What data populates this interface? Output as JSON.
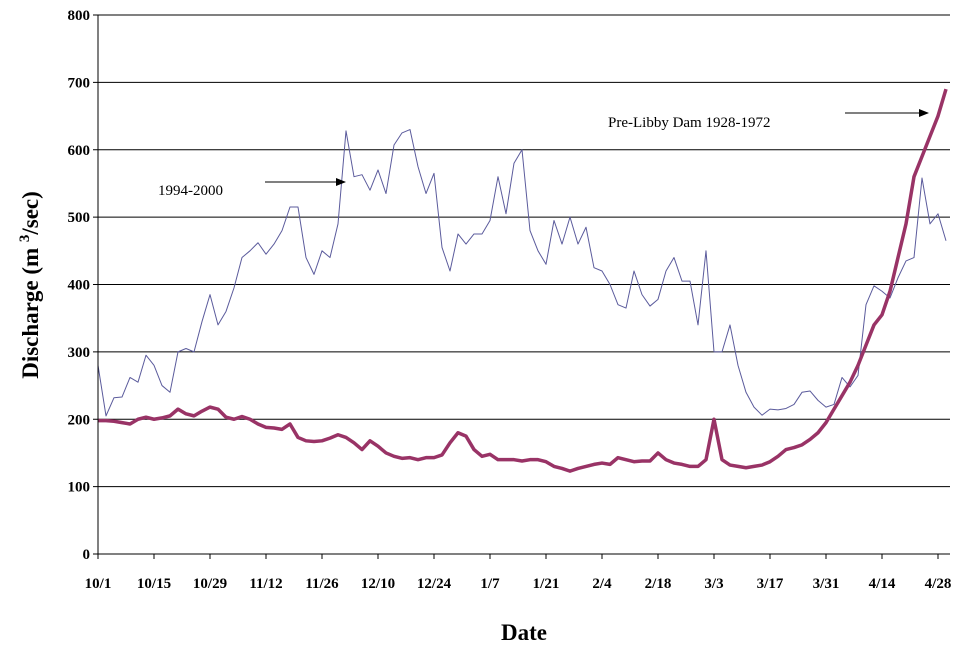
{
  "chart_data": {
    "type": "line",
    "x_label": "Date",
    "y_label": [
      "Discharge (m ",
      "3",
      "/sec)"
    ],
    "xlim": [
      0,
      213
    ],
    "xticks": [
      {
        "value": 0,
        "label": "10/1"
      },
      {
        "value": 14,
        "label": "10/15"
      },
      {
        "value": 28,
        "label": "10/29"
      },
      {
        "value": 42,
        "label": "11/12"
      },
      {
        "value": 56,
        "label": "11/26"
      },
      {
        "value": 70,
        "label": "12/10"
      },
      {
        "value": 84,
        "label": "12/24"
      },
      {
        "value": 98,
        "label": "1/7"
      },
      {
        "value": 112,
        "label": "1/21"
      },
      {
        "value": 126,
        "label": "2/4"
      },
      {
        "value": 140,
        "label": "2/18"
      },
      {
        "value": 154,
        "label": "3/3"
      },
      {
        "value": 168,
        "label": "3/17"
      },
      {
        "value": 182,
        "label": "3/31"
      },
      {
        "value": 196,
        "label": "4/14"
      },
      {
        "value": 210,
        "label": "4/28"
      }
    ],
    "ylim": [
      0,
      800
    ],
    "yticks": [
      0,
      100,
      200,
      300,
      400,
      500,
      600,
      700,
      800
    ],
    "grid": true,
    "x": [
      0,
      2,
      4,
      6,
      8,
      10,
      12,
      14,
      16,
      18,
      20,
      22,
      24,
      26,
      28,
      30,
      32,
      34,
      36,
      38,
      40,
      42,
      44,
      46,
      48,
      50,
      52,
      54,
      56,
      58,
      60,
      62,
      64,
      66,
      68,
      70,
      72,
      74,
      76,
      78,
      80,
      82,
      84,
      86,
      88,
      90,
      92,
      94,
      96,
      98,
      100,
      102,
      104,
      106,
      108,
      110,
      112,
      114,
      116,
      118,
      120,
      122,
      124,
      126,
      128,
      130,
      132,
      134,
      136,
      138,
      140,
      142,
      144,
      146,
      148,
      150,
      152,
      154,
      156,
      158,
      160,
      162,
      164,
      166,
      168,
      170,
      172,
      174,
      176,
      178,
      180,
      182,
      184,
      186,
      188,
      190,
      192,
      194,
      196,
      198,
      200,
      202,
      204,
      206,
      208,
      210,
      212
    ],
    "series": [
      {
        "name": "1994-2000",
        "color": "#5b5b9c",
        "width": 1,
        "values": [
          280,
          205,
          232,
          233,
          262,
          255,
          295,
          280,
          250,
          240,
          300,
          305,
          300,
          345,
          385,
          340,
          360,
          395,
          440,
          450,
          462,
          445,
          460,
          480,
          515,
          515,
          440,
          415,
          450,
          440,
          490,
          628,
          560,
          563,
          540,
          570,
          535,
          607,
          625,
          630,
          575,
          535,
          565,
          455,
          420,
          475,
          460,
          475,
          475,
          495,
          560,
          505,
          580,
          600,
          480,
          450,
          430,
          495,
          460,
          500,
          460,
          485,
          425,
          420,
          400,
          370,
          365,
          420,
          385,
          368,
          378,
          420,
          440,
          405,
          405,
          340,
          450,
          300,
          300,
          340,
          280,
          240,
          218,
          206,
          215,
          214,
          216,
          222,
          240,
          242,
          228,
          218,
          222,
          262,
          248,
          265,
          370,
          398,
          390,
          380,
          410,
          435,
          440,
          558,
          490,
          505,
          465
        ]
      },
      {
        "name": "Pre-Libby Dam 1928-1972",
        "color": "#993366",
        "width": 3.5,
        "values": [
          198,
          198,
          197,
          195,
          193,
          200,
          203,
          200,
          202,
          205,
          215,
          208,
          205,
          212,
          218,
          215,
          203,
          200,
          204,
          200,
          193,
          188,
          187,
          185,
          193,
          173,
          168,
          167,
          168,
          172,
          177,
          173,
          165,
          155,
          168,
          160,
          150,
          145,
          142,
          143,
          140,
          143,
          143,
          147,
          165,
          180,
          175,
          155,
          145,
          148,
          140,
          140,
          140,
          138,
          140,
          140,
          137,
          130,
          127,
          123,
          127,
          130,
          133,
          135,
          133,
          143,
          140,
          137,
          138,
          138,
          150,
          140,
          135,
          133,
          130,
          130,
          140,
          200,
          140,
          132,
          130,
          128,
          130,
          132,
          137,
          145,
          155,
          158,
          162,
          170,
          180,
          195,
          215,
          235,
          255,
          280,
          310,
          340,
          355,
          390,
          440,
          490,
          560,
          590,
          620,
          650,
          690
        ]
      }
    ]
  }
}
